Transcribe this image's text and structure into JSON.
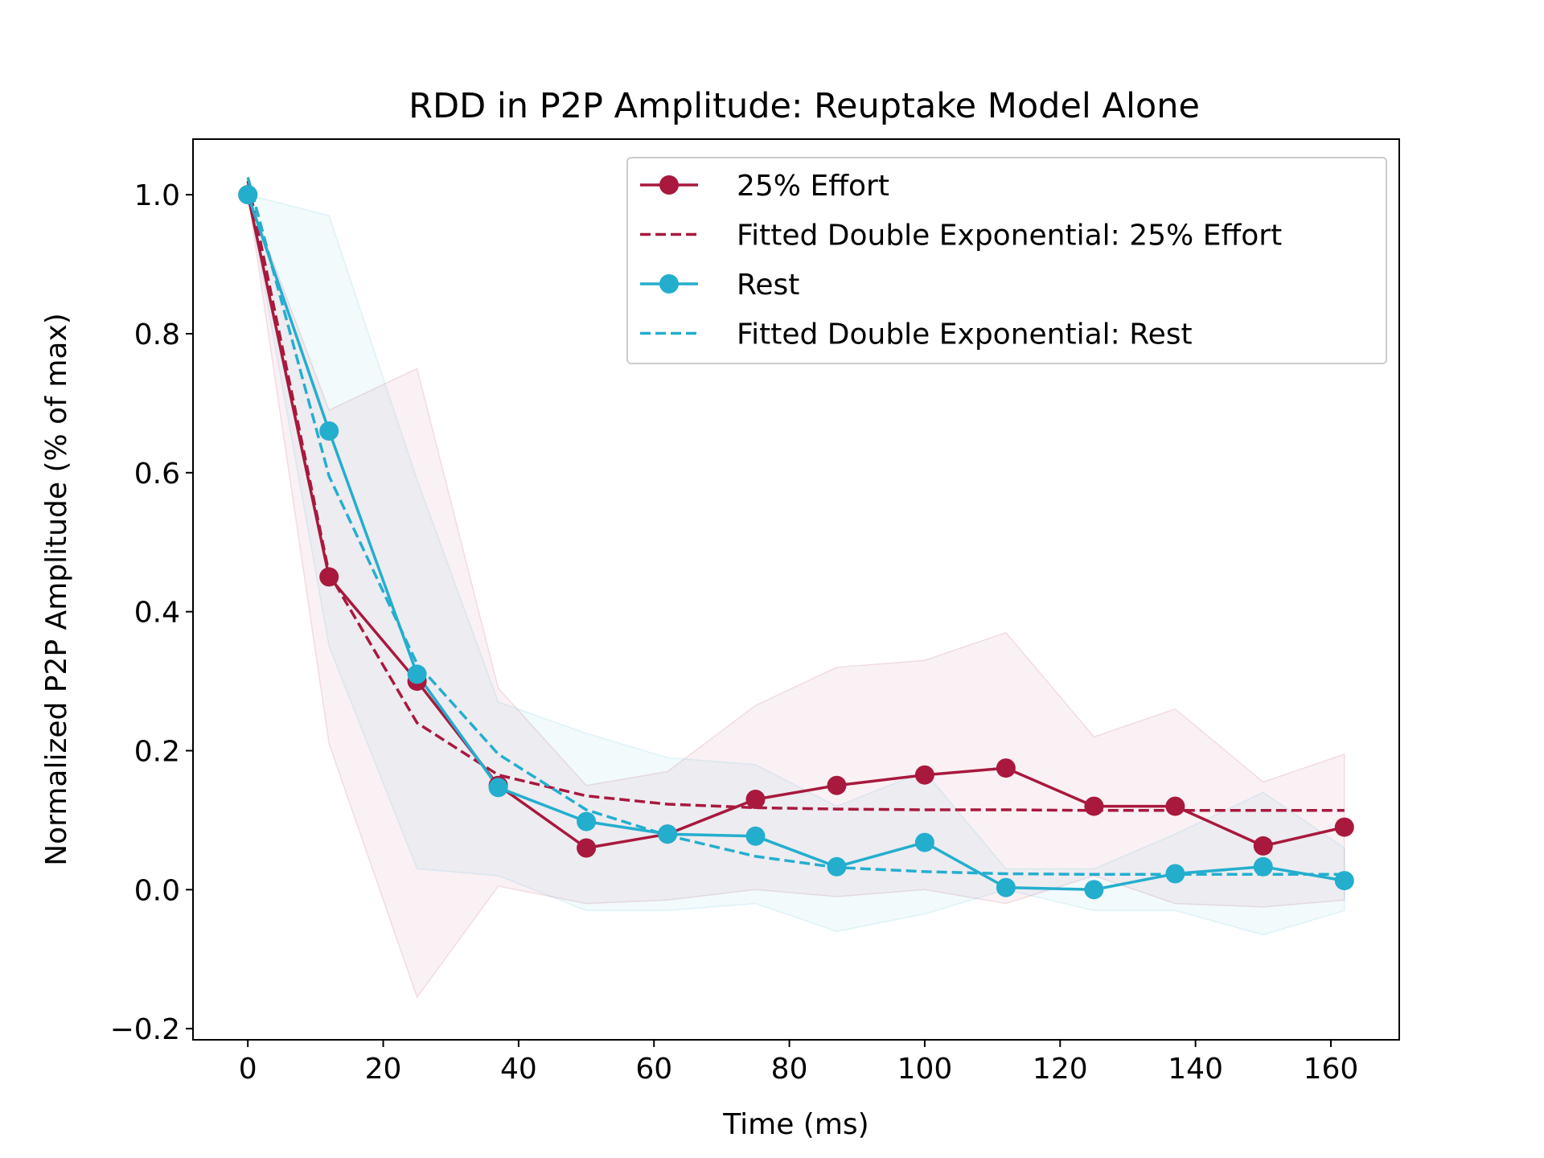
{
  "chart_data": {
    "type": "line",
    "title": "RDD in P2P Amplitude: Reuptake Model Alone",
    "xlabel": "Time (ms)",
    "ylabel": "Normalized P2P Amplitude (% of max)",
    "xlim": [
      -8.1,
      170.1
    ],
    "ylim": [
      -0.216,
      1.08
    ],
    "x_ticks": [
      0,
      20,
      40,
      60,
      80,
      100,
      120,
      140,
      160
    ],
    "x_tick_labels": [
      "0",
      "20",
      "40",
      "60",
      "80",
      "100",
      "120",
      "140",
      "160"
    ],
    "y_ticks": [
      -0.2,
      0.0,
      0.2,
      0.4,
      0.6,
      0.8,
      1.0
    ],
    "y_tick_labels": [
      "−0.2",
      "0.0",
      "0.2",
      "0.4",
      "0.6",
      "0.8",
      "1.0"
    ],
    "grid": false,
    "legend_position": "top-right",
    "x": [
      0,
      12,
      25,
      37,
      50,
      62,
      75,
      87,
      100,
      112,
      125,
      137,
      150,
      162
    ],
    "series": [
      {
        "name": "25% Effort",
        "style": "line-markers",
        "color": "#A8193D",
        "values": [
          1.0,
          0.45,
          0.3,
          0.15,
          0.06,
          0.08,
          0.13,
          0.15,
          0.165,
          0.175,
          0.12,
          0.12,
          0.063,
          0.09
        ],
        "band_upper": [
          1.0,
          0.69,
          0.75,
          0.29,
          0.15,
          0.17,
          0.265,
          0.32,
          0.33,
          0.37,
          0.22,
          0.26,
          0.155,
          0.195
        ],
        "band_lower": [
          1.0,
          0.21,
          -0.155,
          0.005,
          -0.02,
          -0.015,
          0.0,
          -0.01,
          0.0,
          -0.02,
          0.02,
          -0.02,
          -0.025,
          -0.015
        ]
      },
      {
        "name": "Fitted Double Exponential: 25% Effort",
        "style": "dashed",
        "color": "#A8193D",
        "values": [
          1.02,
          0.455,
          0.24,
          0.165,
          0.135,
          0.123,
          0.118,
          0.116,
          0.115,
          0.115,
          0.114,
          0.114,
          0.114,
          0.114
        ]
      },
      {
        "name": "Rest",
        "style": "line-markers",
        "color": "#24AECE",
        "values": [
          1.0,
          0.66,
          0.31,
          0.147,
          0.098,
          0.08,
          0.077,
          0.033,
          0.068,
          0.003,
          0.0,
          0.023,
          0.033,
          0.013
        ],
        "band_upper": [
          1.0,
          0.97,
          0.59,
          0.27,
          0.225,
          0.19,
          0.18,
          0.12,
          0.17,
          0.03,
          0.03,
          0.08,
          0.14,
          0.06
        ],
        "band_lower": [
          1.0,
          0.35,
          0.03,
          0.02,
          -0.03,
          -0.03,
          -0.02,
          -0.06,
          -0.035,
          0.0,
          -0.03,
          -0.03,
          -0.065,
          -0.03
        ]
      },
      {
        "name": "Fitted Double Exponential: Rest",
        "style": "dashed",
        "color": "#24AECE",
        "values": [
          1.025,
          0.595,
          0.325,
          0.195,
          0.115,
          0.078,
          0.048,
          0.032,
          0.026,
          0.023,
          0.022,
          0.022,
          0.022,
          0.022
        ]
      }
    ]
  }
}
